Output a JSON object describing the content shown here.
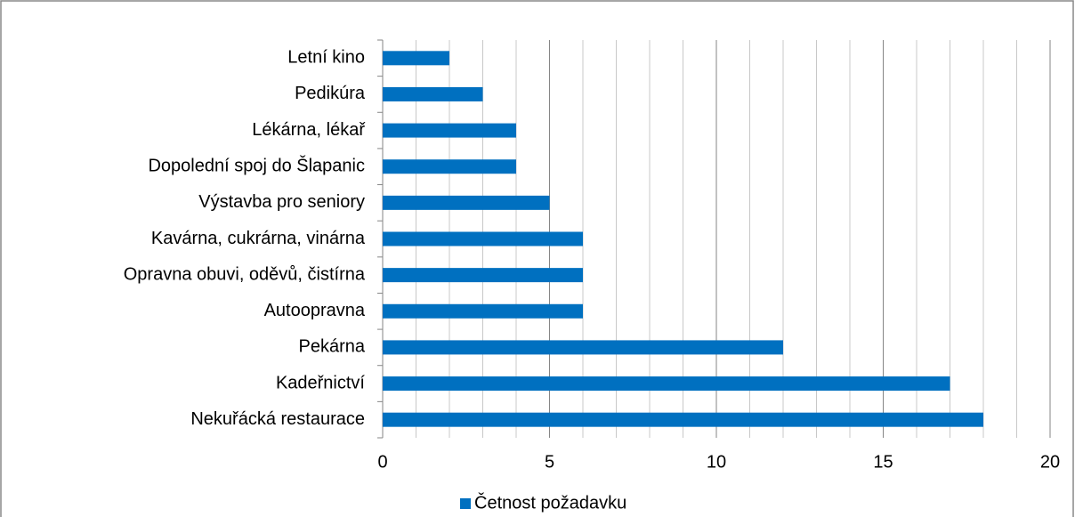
{
  "chart_data": {
    "type": "barh",
    "categories": [
      "Letní kino",
      "Pedikúra",
      "Lékárna, lékař",
      "Dopolední spoj do Šlapanic",
      "Výstavba pro seniory",
      "Kavárna, cukrárna, vinárna",
      "Opravna obuvi, oděvů, čistírna",
      "Autoopravna",
      "Pekárna",
      "Kadeřnictví",
      "Nekuřácká restaurace"
    ],
    "series": [
      {
        "name": "Četnost požadavku",
        "color": "#0070c0",
        "values": [
          2,
          3,
          4,
          4,
          5,
          6,
          6,
          6,
          12,
          17,
          18
        ]
      }
    ],
    "xlim": [
      0,
      20
    ],
    "xticks": [
      0,
      5,
      10,
      15,
      20
    ],
    "minor_xticks": [
      1,
      2,
      3,
      4,
      6,
      7,
      8,
      9,
      11,
      12,
      13,
      14,
      16,
      17,
      18,
      19
    ],
    "grid": true,
    "legend": "bottom"
  }
}
